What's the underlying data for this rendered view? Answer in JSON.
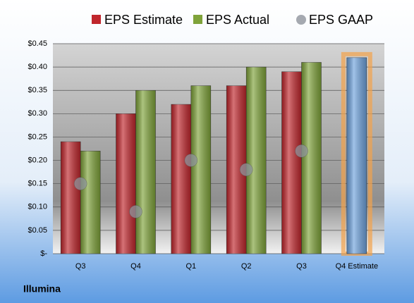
{
  "chart_data": {
    "type": "bar",
    "title_footer": "Illumina",
    "categories": [
      "Q3",
      "Q4",
      "Q1",
      "Q2",
      "Q3",
      "Q4 Estimate"
    ],
    "series": [
      {
        "name": "EPS Estimate",
        "color": "#c0262c",
        "values": [
          0.24,
          0.3,
          0.32,
          0.36,
          0.39,
          0.42
        ],
        "highlight_last_color": "#6fa3dd"
      },
      {
        "name": "EPS Actual",
        "color": "#7fa33a",
        "values": [
          0.22,
          0.35,
          0.36,
          0.4,
          0.41,
          null
        ]
      },
      {
        "name": "EPS GAAP",
        "color": "#8e949c",
        "marker": "circle",
        "values": [
          0.15,
          0.09,
          0.2,
          0.18,
          0.22,
          null
        ]
      }
    ],
    "ylim": [
      0,
      0.45
    ],
    "yticks": [
      {
        "value": 0,
        "label": "$-"
      },
      {
        "value": 0.05,
        "label": "$0.05"
      },
      {
        "value": 0.1,
        "label": "$0.10"
      },
      {
        "value": 0.15,
        "label": "$0.15"
      },
      {
        "value": 0.2,
        "label": "$0.20"
      },
      {
        "value": 0.25,
        "label": "$0.25"
      },
      {
        "value": 0.3,
        "label": "$0.30"
      },
      {
        "value": 0.35,
        "label": "$0.35"
      },
      {
        "value": 0.4,
        "label": "$0.40"
      },
      {
        "value": 0.45,
        "label": "$0.45"
      }
    ],
    "grid": true
  }
}
